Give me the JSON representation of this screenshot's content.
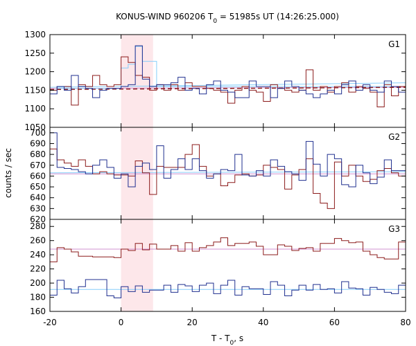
{
  "chart_data": {
    "type": "line",
    "title_parts": {
      "prefix": "KONUS-WIND 960206 T",
      "subscript": "0",
      "suffix": " = 51985s UT (14:26:25.000)"
    },
    "xlabel_parts": {
      "prefix": "T - T",
      "subscript": "0",
      "suffix": ", s"
    },
    "ylabel": "counts / sec",
    "xlim": [
      -20,
      80
    ],
    "xticks": [
      -20,
      0,
      20,
      40,
      60,
      80
    ],
    "shaded_interval": [
      0,
      9
    ],
    "colors": {
      "series_a": "#8b1a1a",
      "series_b": "#1f2f8f",
      "series_c": "#87cefa",
      "fit_a": "#d090d0",
      "fit_b": "#87cefa",
      "shade": "#fde7ea"
    },
    "panels": [
      {
        "label": "G1",
        "ylim": [
          1050,
          1300
        ],
        "yticks": [
          1050,
          1100,
          1150,
          1200,
          1250,
          1300
        ],
        "step_x": [
          -20,
          -18,
          -16,
          -14,
          -12,
          -10,
          -8,
          -6,
          -4,
          -2,
          0,
          2,
          4,
          6,
          8,
          10,
          12,
          14,
          16,
          18,
          20,
          22,
          24,
          26,
          28,
          30,
          32,
          34,
          36,
          38,
          40,
          42,
          44,
          46,
          48,
          50,
          52,
          54,
          56,
          58,
          60,
          62,
          64,
          66,
          68,
          70,
          72,
          74,
          76,
          78,
          80
        ],
        "series_a_values": [
          1150,
          1160,
          1160,
          1110,
          1165,
          1160,
          1190,
          1165,
          1160,
          1165,
          1240,
          1225,
          1190,
          1185,
          1150,
          1165,
          1150,
          1165,
          1150,
          1170,
          1160,
          1160,
          1155,
          1150,
          1145,
          1115,
          1150,
          1160,
          1150,
          1145,
          1120,
          1165,
          1155,
          1150,
          1145,
          1150,
          1205,
          1150,
          1160,
          1145,
          1160,
          1170,
          1145,
          1160,
          1155,
          1145,
          1105,
          1165,
          1135,
          1160
        ],
        "series_b_values": [
          1140,
          1160,
          1150,
          1190,
          1160,
          1155,
          1130,
          1150,
          1155,
          1155,
          1160,
          1165,
          1270,
          1180,
          1160,
          1165,
          1165,
          1170,
          1185,
          1150,
          1155,
          1140,
          1165,
          1175,
          1150,
          1145,
          1130,
          1130,
          1175,
          1160,
          1160,
          1130,
          1155,
          1175,
          1160,
          1150,
          1140,
          1130,
          1140,
          1150,
          1140,
          1165,
          1175,
          1150,
          1165,
          1150,
          1145,
          1175,
          1160,
          1145
        ],
        "series_c_values": [
          1150,
          1155,
          1155,
          1155,
          1155,
          1155,
          1155,
          1155,
          1155,
          1155,
          1210,
          1220,
          1268,
          1228,
          1228,
          1160,
          1160,
          1160,
          1160,
          1160,
          1160,
          1160,
          1160,
          1160,
          1160,
          1160,
          1160,
          1160,
          1160,
          1160,
          1160,
          1160,
          1160,
          1160,
          1160,
          1160,
          1160,
          1160,
          1160,
          1160,
          1160,
          1160,
          1160,
          1160,
          1160,
          1160,
          1160,
          1160,
          1160,
          1160
        ],
        "fit_a_points": [
          [
            -20,
            1155
          ],
          [
            80,
            1158
          ]
        ],
        "fit_b_points": [
          [
            -20,
            1158
          ],
          [
            80,
            1170
          ]
        ],
        "dashed_points": [
          [
            -20,
            1152
          ],
          [
            80,
            1158
          ]
        ]
      },
      {
        "label": "G2",
        "ylim": [
          620,
          705
        ],
        "yticks": [
          620,
          630,
          640,
          650,
          660,
          670,
          680,
          690,
          700
        ],
        "step_x": [
          -20,
          -18,
          -16,
          -14,
          -12,
          -10,
          -8,
          -6,
          -4,
          -2,
          0,
          2,
          4,
          6,
          8,
          10,
          12,
          14,
          16,
          18,
          20,
          22,
          24,
          26,
          28,
          30,
          32,
          34,
          36,
          38,
          40,
          42,
          44,
          46,
          48,
          50,
          52,
          54,
          56,
          58,
          60,
          62,
          64,
          66,
          68,
          70,
          72,
          74,
          76,
          78,
          80
        ],
        "series_a_values": [
          685,
          675,
          672,
          669,
          675,
          669,
          662,
          664,
          662,
          661,
          661,
          660,
          674,
          663,
          643,
          669,
          668,
          668,
          668,
          680,
          689,
          669,
          660,
          662,
          651,
          654,
          661,
          662,
          660,
          661,
          670,
          668,
          666,
          648,
          661,
          666,
          676,
          644,
          635,
          630,
          673,
          660,
          670,
          660,
          655,
          657,
          665,
          667,
          663,
          660
        ],
        "series_b_values": [
          700,
          668,
          667,
          666,
          664,
          662,
          670,
          675,
          668,
          658,
          662,
          650,
          669,
          672,
          666,
          688,
          658,
          666,
          676,
          666,
          676,
          665,
          658,
          662,
          666,
          665,
          680,
          661,
          660,
          665,
          660,
          675,
          669,
          664,
          662,
          656,
          692,
          671,
          660,
          680,
          676,
          652,
          650,
          670,
          663,
          653,
          659,
          675,
          665,
          665
        ],
        "fit_a_points": [
          [
            -20,
            662
          ],
          [
            80,
            662
          ]
        ],
        "fit_b_points": [
          [
            -20,
            663
          ],
          [
            80,
            664
          ]
        ]
      },
      {
        "label": "G3",
        "ylim": [
          160,
          290
        ],
        "yticks": [
          160,
          180,
          200,
          220,
          240,
          260,
          280
        ],
        "step_x": [
          -20,
          -18,
          -16,
          -14,
          -12,
          -10,
          -8,
          -6,
          -4,
          -2,
          0,
          2,
          4,
          6,
          8,
          10,
          12,
          14,
          16,
          18,
          20,
          22,
          24,
          26,
          28,
          30,
          32,
          34,
          36,
          38,
          40,
          42,
          44,
          46,
          48,
          50,
          52,
          54,
          56,
          58,
          60,
          62,
          64,
          66,
          68,
          70,
          72,
          74,
          76,
          78,
          80
        ],
        "series_a_values": [
          230,
          250,
          248,
          244,
          238,
          238,
          237,
          237,
          237,
          236,
          248,
          246,
          256,
          247,
          255,
          248,
          248,
          253,
          245,
          257,
          245,
          250,
          253,
          258,
          264,
          253,
          256,
          256,
          258,
          252,
          240,
          240,
          254,
          252,
          246,
          249,
          250,
          245,
          256,
          256,
          263,
          260,
          257,
          258,
          245,
          240,
          236,
          234,
          234,
          258
        ],
        "series_b_values": [
          183,
          204,
          192,
          186,
          195,
          205,
          205,
          205,
          182,
          179,
          195,
          188,
          196,
          187,
          190,
          190,
          197,
          187,
          198,
          196,
          188,
          197,
          200,
          185,
          197,
          204,
          183,
          195,
          192,
          192,
          184,
          202,
          197,
          182,
          190,
          197,
          190,
          198,
          191,
          192,
          186,
          202,
          193,
          192,
          183,
          194,
          191,
          187,
          185,
          197
        ],
        "fit_a_points": [
          [
            -20,
            248
          ],
          [
            80,
            248
          ]
        ],
        "fit_b_points": [
          [
            -20,
            191
          ],
          [
            80,
            191
          ]
        ]
      }
    ]
  }
}
